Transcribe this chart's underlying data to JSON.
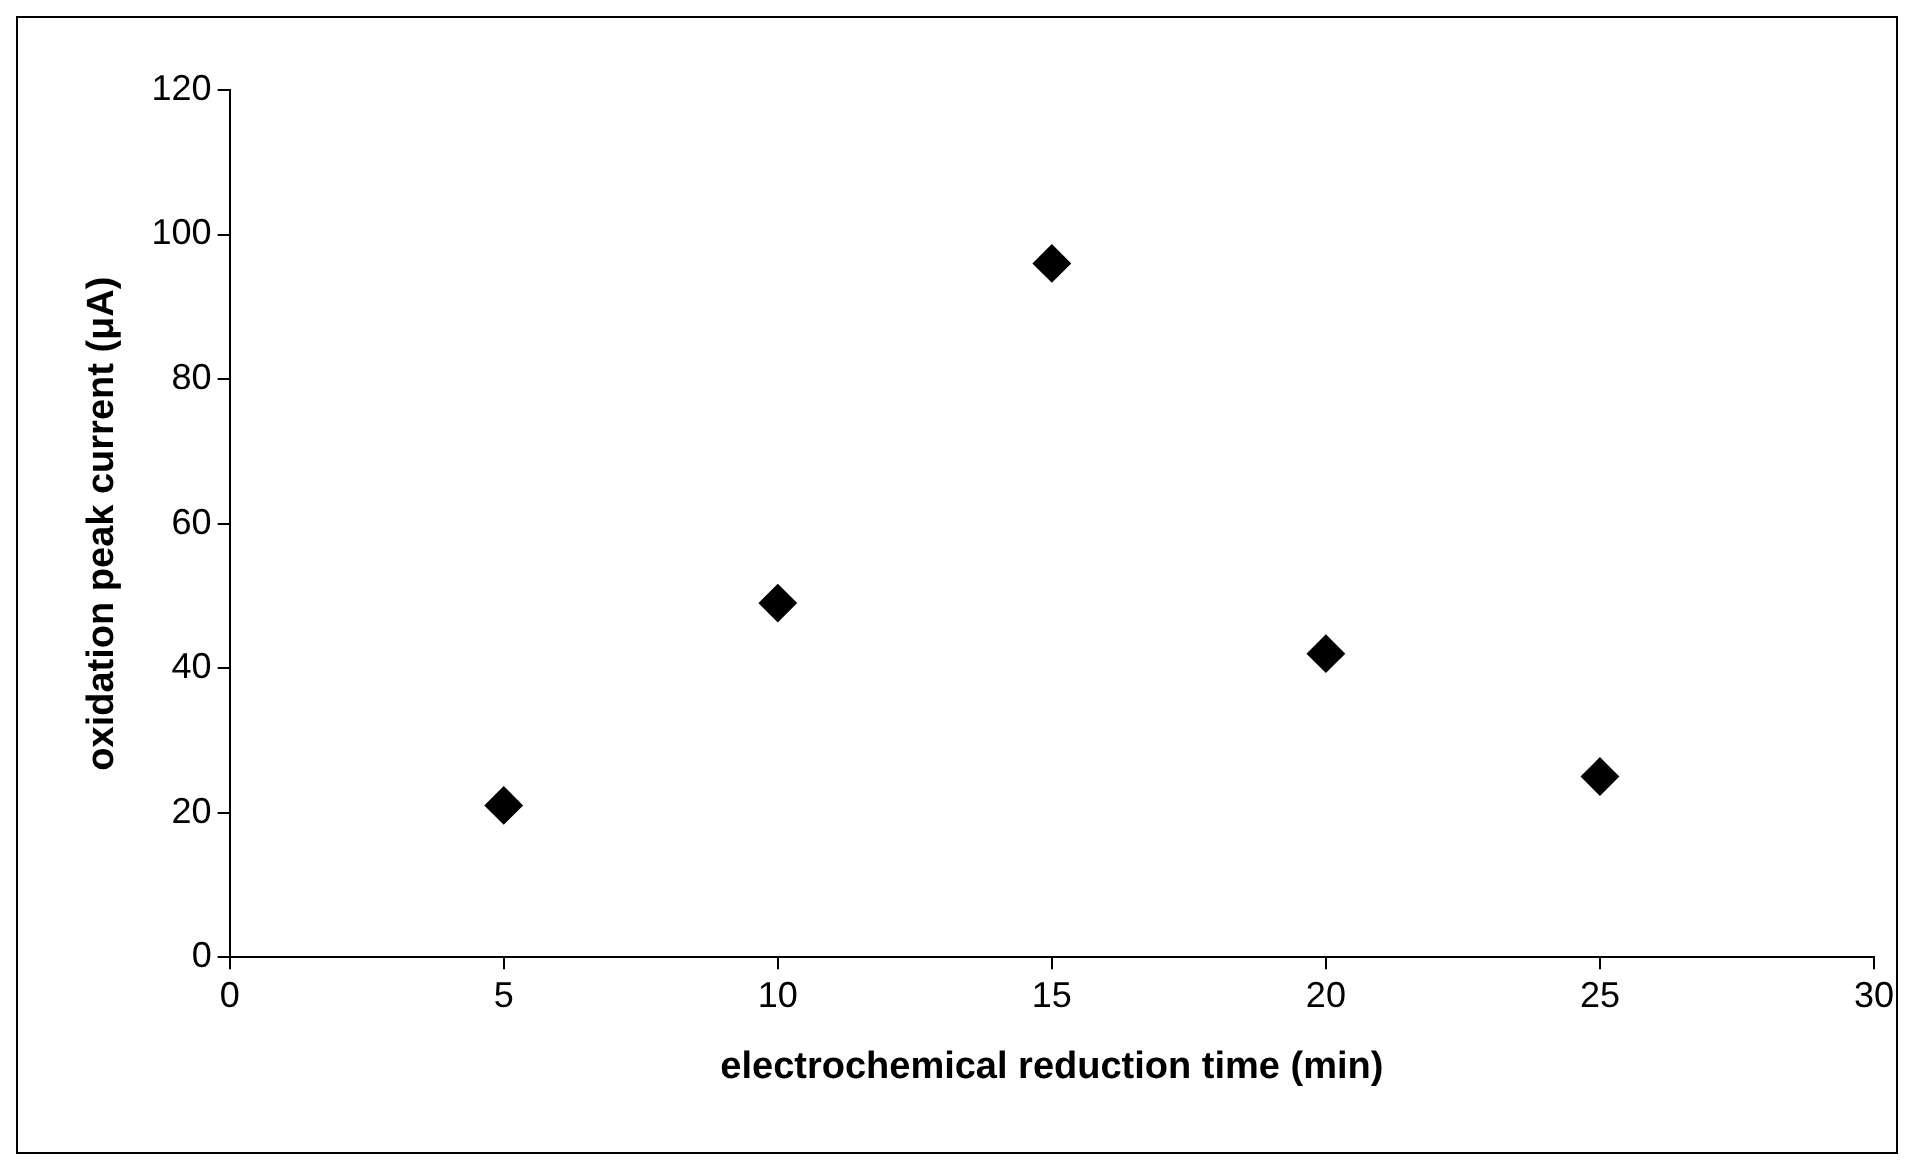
{
  "chart_data": {
    "type": "scatter",
    "xlabel": "electrochemical reduction time (min)",
    "ylabel": "oxidation peak current (μA)",
    "x": [
      5,
      10,
      15,
      20,
      25
    ],
    "series": [
      {
        "color": "#000000",
        "values": [
          21,
          49,
          96,
          42,
          25
        ]
      }
    ],
    "xlim": [
      0,
      30
    ],
    "xticks": [
      0,
      5,
      10,
      15,
      20,
      25,
      30
    ],
    "ylim": [
      0,
      120
    ],
    "yticks": [
      0,
      20,
      40,
      60,
      80,
      100,
      120
    ],
    "grid": false,
    "legend": false,
    "marker": "diamond"
  }
}
